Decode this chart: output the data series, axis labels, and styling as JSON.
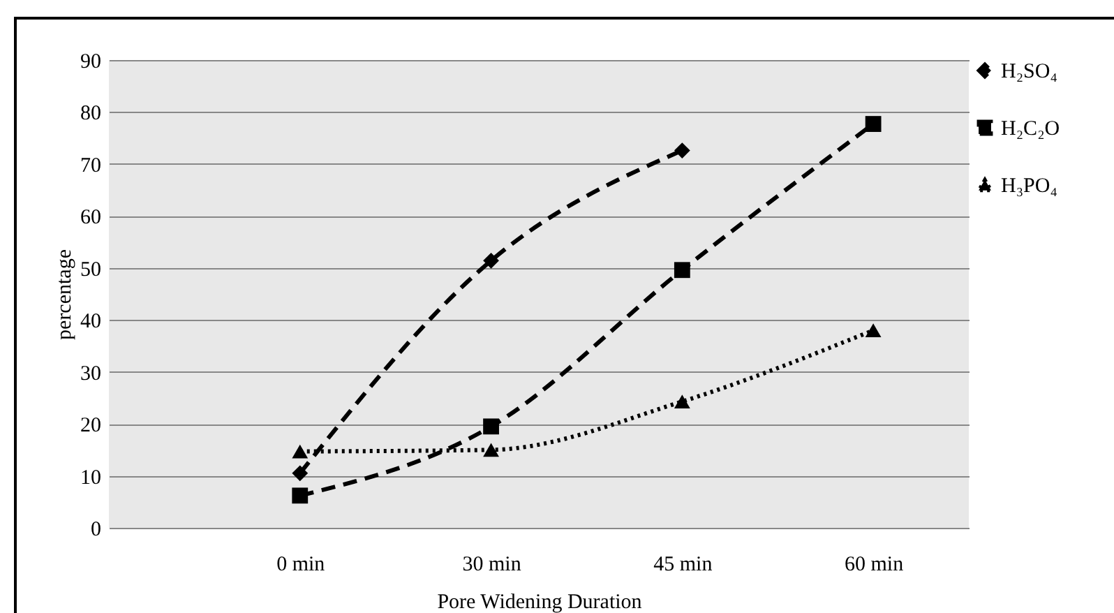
{
  "chart_data": {
    "type": "line",
    "xlabel": "Pore Widening Duration",
    "ylabel": "percentage",
    "categories": [
      null,
      "0 min",
      "30 min",
      "45 min",
      "60 min"
    ],
    "ylim": [
      0,
      90
    ],
    "yticks": [
      0,
      10,
      20,
      30,
      40,
      50,
      60,
      70,
      80,
      90
    ],
    "grid": "y",
    "legend": "right",
    "series": [
      {
        "name": "H₂SO₄",
        "color": "#000000",
        "marker": "diamond",
        "line_style": "dashed",
        "values": [
          null,
          10.5,
          51.4,
          72.6,
          null
        ]
      },
      {
        "name": "H₂C₂O",
        "color": "#000000",
        "marker": "square",
        "line_style": "dashed",
        "values": [
          null,
          6.2,
          19.5,
          49.6,
          77.7
        ]
      },
      {
        "name": "H₃PO₄",
        "color": "#000000",
        "marker": "triangle",
        "line_style": "dotted",
        "values": [
          null,
          14.7,
          15,
          24.3,
          38
        ]
      }
    ]
  }
}
